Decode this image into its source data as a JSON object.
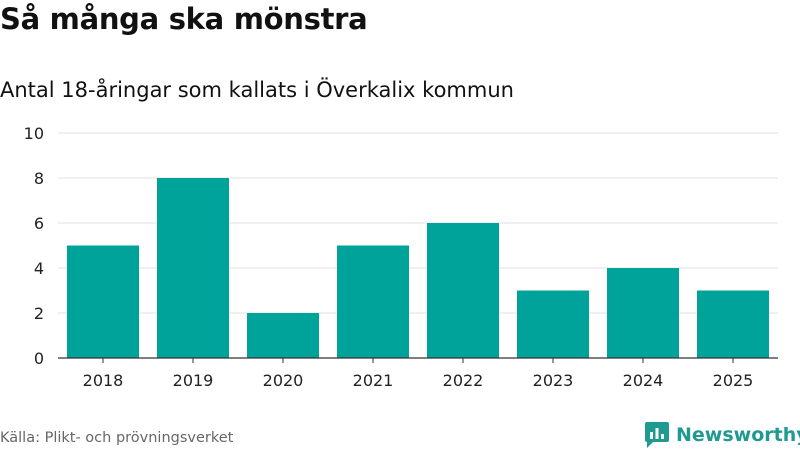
{
  "title": "Så många ska mönstra",
  "subtitle": "Antal 18-åringar som kallats i Överkalix kommun",
  "source": "Källa: Plikt- och prövningsverket",
  "brand": {
    "name": "Newsworthy",
    "icon": "newsworthy-logo-icon"
  },
  "colors": {
    "bar": "#00a39a",
    "brand": "#1e9a90",
    "grid": "#e0e0e0",
    "axis": "#333333"
  },
  "chart_data": {
    "type": "bar",
    "title": "Så många ska mönstra",
    "subtitle": "Antal 18-åringar som kallats i Överkalix kommun",
    "xlabel": "",
    "ylabel": "",
    "categories": [
      "2018",
      "2019",
      "2020",
      "2021",
      "2022",
      "2023",
      "2024",
      "2025"
    ],
    "values": [
      5,
      8,
      2,
      5,
      6,
      3,
      4,
      3
    ],
    "ylim": [
      0,
      10
    ],
    "yticks": [
      "0",
      "2",
      "4",
      "6",
      "8",
      "10"
    ],
    "grid": true,
    "legend": "none"
  }
}
